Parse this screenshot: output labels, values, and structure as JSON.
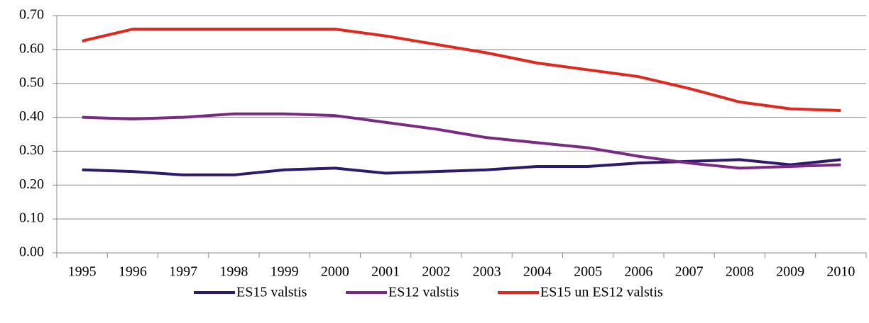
{
  "chart_data": {
    "type": "line",
    "categories": [
      "1995",
      "1996",
      "1997",
      "1998",
      "1999",
      "2000",
      "2001",
      "2002",
      "2003",
      "2004",
      "2005",
      "2006",
      "2007",
      "2008",
      "2009",
      "2010"
    ],
    "series": [
      {
        "name": "ES15 valstis",
        "color": "#2e1a6b",
        "values": [
          0.245,
          0.24,
          0.23,
          0.23,
          0.245,
          0.25,
          0.235,
          0.24,
          0.245,
          0.255,
          0.255,
          0.265,
          0.27,
          0.275,
          0.26,
          0.275
        ]
      },
      {
        "name": "ES12 valstis",
        "color": "#7b2a83",
        "values": [
          0.4,
          0.395,
          0.4,
          0.41,
          0.41,
          0.405,
          0.385,
          0.365,
          0.34,
          0.325,
          0.31,
          0.285,
          0.265,
          0.25,
          0.255,
          0.26
        ]
      },
      {
        "name": "ES15 un ES12 valstis",
        "color": "#e0281e",
        "values": [
          0.625,
          0.66,
          0.66,
          0.66,
          0.66,
          0.66,
          0.64,
          0.615,
          0.59,
          0.56,
          0.54,
          0.52,
          0.485,
          0.445,
          0.425,
          0.42
        ]
      }
    ],
    "ylim": [
      0,
      0.7
    ],
    "yticks": [
      {
        "value": 0,
        "label": "0.00"
      },
      {
        "value": 0.1,
        "label": "0.10"
      },
      {
        "value": 0.2,
        "label": "0.20"
      },
      {
        "value": 0.3,
        "label": "0.30"
      },
      {
        "value": 0.4,
        "label": "0.40"
      },
      {
        "value": 0.5,
        "label": "0.50"
      },
      {
        "value": 0.6,
        "label": "0.60"
      },
      {
        "value": 0.7,
        "label": "0.70"
      }
    ],
    "grid": true
  }
}
